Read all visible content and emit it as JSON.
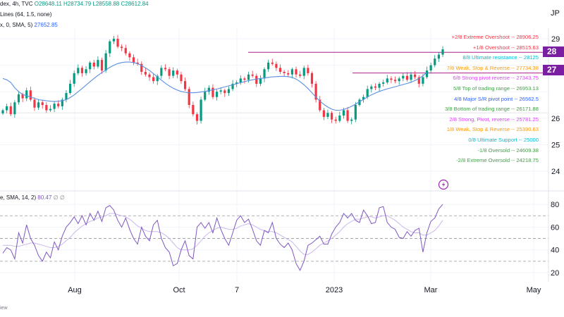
{
  "header": {
    "line1": {
      "prefix": "dex, 4h, TVC",
      "o": "O28648.11",
      "h": "H28734.79",
      "l": "L28558.88",
      "c": "C28612.84"
    },
    "line2": {
      "text": "Lines (64, 1.5, none)"
    },
    "line3": {
      "text": "x, 0, SMA, 5)",
      "value": "27652.85"
    },
    "rsi": {
      "text": "e, SMA, 14, 2)",
      "value": "80.47",
      "extra": "∅  ∅"
    }
  },
  "footer": {
    "text": "iew"
  },
  "axis": {
    "main_ticks": [
      "29",
      "28",
      "27",
      "26",
      "25",
      "24"
    ],
    "rsi_ticks": [
      "80",
      "60",
      "40",
      "20"
    ],
    "x_ticks": [
      "Aug",
      "Oct",
      "7",
      "2023",
      "Mar",
      "May"
    ],
    "top_right": "JP",
    "price_badges": [
      "28",
      "27"
    ]
  },
  "murrey_math": [
    {
      "label": "+2/8 Extreme Overshoot",
      "value": "28906.25",
      "color": "#f23645"
    },
    {
      "label": "+1/8 Overshoot",
      "value": "28515.63",
      "color": "#f23645"
    },
    {
      "label": "8/8 Ultimate resistance",
      "value": "28125",
      "color": "#00bcd4"
    },
    {
      "label": "7/8 Weak, Stop & Reverse",
      "value": "27734.38",
      "color": "#ff9800"
    },
    {
      "label": "6/8 Strong pivot reverse",
      "value": "27343.75",
      "color": "#e040fb"
    },
    {
      "label": "5/8 Top of trading range",
      "value": "26953.13",
      "color": "#43a047"
    },
    {
      "label": "4/8 Major S/R pivot point",
      "value": "26562.5",
      "color": "#2962ff"
    },
    {
      "label": "3/8 Bottom of trading range",
      "value": "26171.88",
      "color": "#43a047"
    },
    {
      "label": "2/8 Strong, Pivot, reverse",
      "value": "25781.25",
      "color": "#e040fb"
    },
    {
      "label": "1/8 Weak, Stop & Reverse",
      "value": "25390.63",
      "color": "#ff9800"
    },
    {
      "label": "0/8 Ultimate Support",
      "value": "25000",
      "color": "#00bcd4"
    },
    {
      "label": "-1/8 Oversold",
      "value": "24609.38",
      "color": "#43a047"
    },
    {
      "label": "-2/8 Extreme Oversold",
      "value": "24218.75",
      "color": "#43a047"
    }
  ],
  "chart_data": {
    "type": "line",
    "panels": [
      "price (candlestick)",
      "RSI"
    ],
    "price_axis_range": [
      23700,
      29400
    ],
    "rsi_axis_range": [
      15,
      88
    ],
    "price_close": [
      26300,
      26450,
      26150,
      26600,
      26900,
      26750,
      27050,
      26700,
      26400,
      26600,
      26500,
      26300,
      26350,
      26550,
      26450,
      26700,
      26950,
      27300,
      27700,
      27900,
      27700,
      27850,
      28100,
      27950,
      28200,
      27800,
      28450,
      28900,
      29000,
      28700,
      28650,
      28450,
      28300,
      28100,
      28050,
      27750,
      27650,
      27550,
      27400,
      27600,
      27900,
      27850,
      27600,
      27800,
      27650,
      27400,
      27100,
      26500,
      26150,
      25900,
      26700,
      27000,
      27150,
      26800,
      27000,
      27050,
      26950,
      27100,
      27300,
      27350,
      27500,
      27450,
      27650,
      27600,
      27300,
      27500,
      27850,
      28100,
      28050,
      27900,
      27750,
      27700,
      27650,
      27850,
      27650,
      27600,
      27900,
      27700,
      27300,
      26700,
      26300,
      26050,
      26200,
      25950,
      25900,
      26100,
      26300,
      25900,
      25950,
      26500,
      26700,
      26800,
      27100,
      27200,
      27150,
      27300,
      27350,
      27500,
      27450,
      27400,
      27500,
      27600,
      27450,
      27650,
      27550,
      27300,
      27550,
      27800,
      28000,
      28250,
      28400,
      28600
    ],
    "price_sma": [
      27500,
      27450,
      27350,
      27150,
      27000,
      26900,
      26850,
      26800,
      26750,
      26700,
      26680,
      26660,
      26640,
      26630,
      26640,
      26660,
      26700,
      26780,
      26880,
      27000,
      27120,
      27250,
      27380,
      27500,
      27620,
      27720,
      27820,
      27920,
      28000,
      28060,
      28100,
      28120,
      28120,
      28100,
      28060,
      27990,
      27900,
      27800,
      27680,
      27560,
      27440,
      27320,
      27220,
      27130,
      27060,
      27010,
      26980,
      26960,
      26960,
      26970,
      26990,
      27010,
      27040,
      27070,
      27100,
      27140,
      27180,
      27220,
      27260,
      27300,
      27340,
      27380,
      27420,
      27450,
      27480,
      27500,
      27520,
      27540,
      27560,
      27570,
      27580,
      27580,
      27570,
      27540,
      27480,
      27380,
      27260,
      27120,
      26960,
      26800,
      26650,
      26520,
      26420,
      26340,
      26300,
      26300,
      26330,
      26380,
      26450,
      26530,
      26620,
      26710,
      26800,
      26880,
      26950,
      27010,
      27060,
      27110,
      27150,
      27190,
      27230,
      27270,
      27310,
      27360,
      27420,
      27500,
      27600,
      27720
    ],
    "rsi": [
      37,
      42,
      40,
      32,
      55,
      46,
      62,
      50,
      44,
      35,
      30,
      38,
      33,
      47,
      40,
      52,
      60,
      64,
      69,
      63,
      70,
      62,
      72,
      66,
      74,
      65,
      77,
      79,
      75,
      66,
      60,
      68,
      58,
      50,
      45,
      60,
      52,
      48,
      62,
      66,
      50,
      42,
      38,
      26,
      28,
      40,
      48,
      35,
      32,
      60,
      64,
      59,
      64,
      55,
      68,
      58,
      50,
      44,
      55,
      66,
      70,
      64,
      67,
      58,
      48,
      44,
      57,
      55,
      64,
      50,
      45,
      42,
      46,
      40,
      28,
      22,
      30,
      44,
      46,
      49,
      52,
      45,
      45,
      54,
      60,
      64,
      72,
      68,
      72,
      66,
      64,
      75,
      70,
      63,
      64,
      77,
      78,
      64,
      60,
      58,
      51,
      50,
      56,
      52,
      57,
      59,
      38,
      55,
      65,
      68,
      76,
      80
    ],
    "rsi_ma": [
      44,
      44,
      44,
      43,
      43,
      44,
      45,
      46,
      46,
      45,
      44,
      43,
      42,
      42,
      43,
      45,
      48,
      51,
      55,
      58,
      61,
      63,
      65,
      66,
      68,
      69,
      70,
      72,
      72,
      71,
      70,
      69,
      67,
      64,
      61,
      59,
      57,
      56,
      56,
      56,
      55,
      53,
      50,
      46,
      42,
      40,
      40,
      40,
      41,
      44,
      48,
      52,
      55,
      57,
      59,
      60,
      59,
      58,
      58,
      59,
      61,
      62,
      63,
      62,
      60,
      58,
      57,
      56,
      56,
      55,
      53,
      51,
      49,
      47,
      43,
      39,
      36,
      36,
      38,
      41,
      44,
      46,
      48,
      50,
      53,
      56,
      60,
      63,
      65,
      67,
      67,
      68,
      69,
      69,
      68,
      69,
      70,
      70,
      68,
      66,
      63,
      60,
      58,
      56,
      55,
      55,
      53,
      53,
      55,
      57,
      61,
      66
    ],
    "rsi_levels": [
      70,
      50,
      30
    ],
    "x_labels": [
      "Aug",
      "Oct",
      "7",
      "2023",
      "Mar",
      "May"
    ]
  }
}
